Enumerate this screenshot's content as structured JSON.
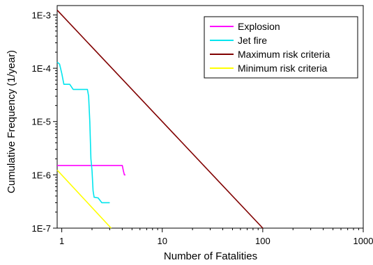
{
  "chart_data": {
    "type": "line",
    "title": "",
    "xlabel": "Number of Fatalities",
    "ylabel": "Cumulative Frequency (1/year)",
    "x_scale": "log",
    "y_scale": "log",
    "xlim": [
      0.9,
      1000
    ],
    "ylim": [
      1e-07,
      0.0015
    ],
    "x_ticks": [
      {
        "value": 1,
        "label": "1"
      },
      {
        "value": 10,
        "label": "10"
      },
      {
        "value": 100,
        "label": "100"
      },
      {
        "value": 1000,
        "label": "1000"
      }
    ],
    "y_ticks": [
      {
        "value": 0.001,
        "label": "1E-3"
      },
      {
        "value": 0.0001,
        "label": "1E-4"
      },
      {
        "value": 1e-05,
        "label": "1E-5"
      },
      {
        "value": 1e-06,
        "label": "1E-6"
      },
      {
        "value": 1e-07,
        "label": "1E-7"
      }
    ],
    "grid": false,
    "legend_position": "top-right",
    "series": [
      {
        "name": "Explosion",
        "color": "#ff00ff",
        "x": [
          0.9,
          4.0,
          4.1,
          4.2,
          4.3
        ],
        "y": [
          1.5e-06,
          1.5e-06,
          1.2e-06,
          1e-06,
          1e-06
        ]
      },
      {
        "name": "Jet fire",
        "color": "#00e5ee",
        "x": [
          0.9,
          0.95,
          1.0,
          1.05,
          1.2,
          1.3,
          1.35,
          1.8,
          1.85,
          1.9,
          1.95,
          2.0,
          2.05,
          2.1,
          2.3,
          2.5,
          3.0
        ],
        "y": [
          0.00013,
          0.00012,
          8e-05,
          5e-05,
          5e-05,
          4e-05,
          4e-05,
          4e-05,
          3e-05,
          1e-05,
          2e-06,
          1.2e-06,
          5e-07,
          3.8e-07,
          3.7e-07,
          3e-07,
          3e-07
        ]
      },
      {
        "name": "Maximum risk criteria",
        "color": "#800000",
        "x": [
          0.9,
          100
        ],
        "y": [
          0.00123,
          1e-07
        ]
      },
      {
        "name": "Minimum risk criteria",
        "color": "#ffff00",
        "x": [
          0.9,
          3.1
        ],
        "y": [
          1.23e-06,
          1e-07
        ]
      }
    ]
  }
}
